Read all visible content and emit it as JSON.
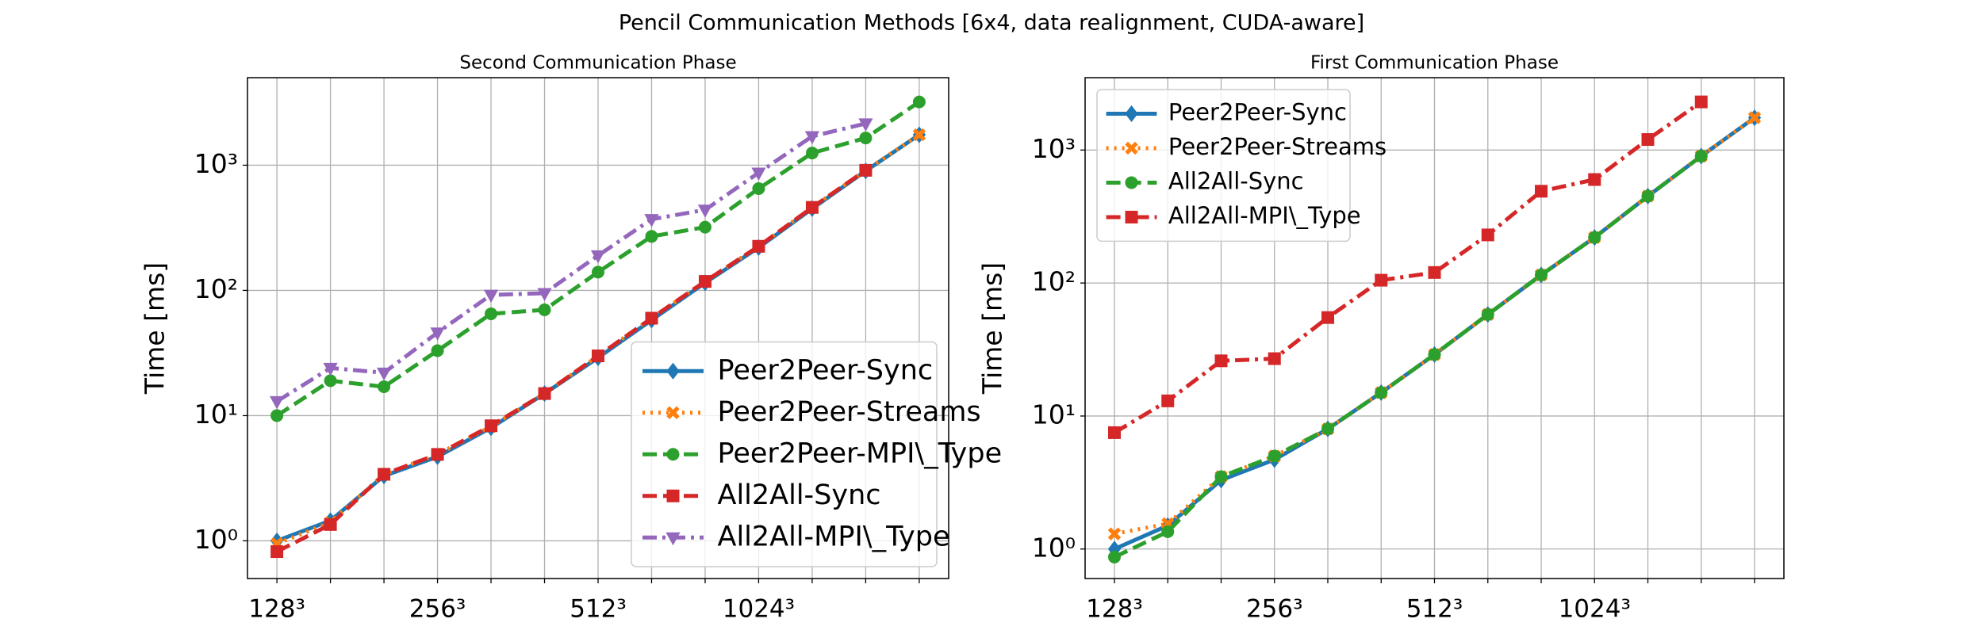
{
  "title": "Pencil Communication Methods [6x4, data realignment, CUDA-aware]",
  "chart_data": [
    {
      "type": "line",
      "title": "Second Communication Phase",
      "ylabel": "Time [ms]",
      "log_y": true,
      "grid": true,
      "legend": "lower right",
      "categories": [
        "128³",
        null,
        null,
        "256³",
        null,
        null,
        "512³",
        null,
        null,
        "1024³",
        null,
        null,
        null
      ],
      "ylim": [
        0.5,
        5000
      ],
      "yticks": [
        {
          "value": 1,
          "label": "10⁰"
        },
        {
          "value": 10,
          "label": "10¹"
        },
        {
          "value": 100,
          "label": "10²"
        },
        {
          "value": 1000,
          "label": "10³"
        }
      ],
      "series": [
        {
          "name": "Peer2Peer-Sync",
          "color": "#1f77b4",
          "marker": "diamond",
          "dash": "solid",
          "values": [
            1.0,
            1.45,
            3.3,
            4.7,
            8,
            15,
            29,
            58,
            115,
            220,
            450,
            900,
            1750
          ]
        },
        {
          "name": "Peer2Peer-Streams",
          "color": "#ff7f0e",
          "marker": "x",
          "dash": "dotted",
          "values": [
            0.95,
            1.4,
            3.4,
            4.9,
            8.2,
            15,
            30,
            60,
            118,
            225,
            460,
            910,
            1750
          ]
        },
        {
          "name": "Peer2Peer-MPI\\_Type",
          "color": "#2ca02c",
          "marker": "circle",
          "dash": "dashed",
          "values": [
            10,
            19,
            17,
            33,
            65,
            70,
            140,
            270,
            320,
            650,
            1250,
            1650,
            3200
          ]
        },
        {
          "name": "All2All-Sync",
          "color": "#d62728",
          "marker": "square",
          "dash": "dashed",
          "values": [
            0.82,
            1.35,
            3.4,
            4.9,
            8.3,
            15,
            30,
            60,
            118,
            225,
            460,
            910,
            null
          ]
        },
        {
          "name": "All2All-MPI\\_Type",
          "color": "#9467bd",
          "marker": "triangle",
          "dash": "dashdot",
          "values": [
            13,
            24,
            22,
            46,
            92,
            95,
            190,
            370,
            440,
            870,
            1700,
            2150,
            null
          ]
        }
      ]
    },
    {
      "type": "line",
      "title": "First Communication Phase",
      "ylabel": "Time [ms]",
      "log_y": true,
      "grid": true,
      "legend": "upper left",
      "categories": [
        "128³",
        null,
        null,
        "256³",
        null,
        null,
        "512³",
        null,
        null,
        "1024³",
        null,
        null,
        null
      ],
      "ylim": [
        0.6,
        3500
      ],
      "yticks": [
        {
          "value": 1,
          "label": "10⁰"
        },
        {
          "value": 10,
          "label": "10¹"
        },
        {
          "value": 100,
          "label": "10²"
        },
        {
          "value": 1000,
          "label": "10³"
        }
      ],
      "series": [
        {
          "name": "Peer2Peer-Sync",
          "color": "#1f77b4",
          "marker": "diamond",
          "dash": "solid",
          "values": [
            1.0,
            1.5,
            3.3,
            4.7,
            8,
            15,
            29,
            58,
            115,
            220,
            450,
            900,
            1750
          ]
        },
        {
          "name": "Peer2Peer-Streams",
          "color": "#ff7f0e",
          "marker": "x",
          "dash": "dotted",
          "values": [
            1.3,
            1.55,
            3.5,
            5,
            8,
            15,
            29,
            58,
            115,
            220,
            450,
            900,
            1750
          ]
        },
        {
          "name": "All2All-Sync",
          "color": "#2ca02c",
          "marker": "circle",
          "dash": "dashed",
          "values": [
            0.87,
            1.35,
            3.5,
            5,
            8,
            15,
            29,
            58,
            115,
            220,
            450,
            900,
            null
          ]
        },
        {
          "name": "All2All-MPI\\_Type",
          "color": "#d62728",
          "marker": "square",
          "dash": "dashdot",
          "values": [
            7.5,
            13,
            26,
            27,
            55,
            105,
            120,
            230,
            490,
            600,
            1200,
            2300,
            null
          ]
        }
      ]
    }
  ]
}
